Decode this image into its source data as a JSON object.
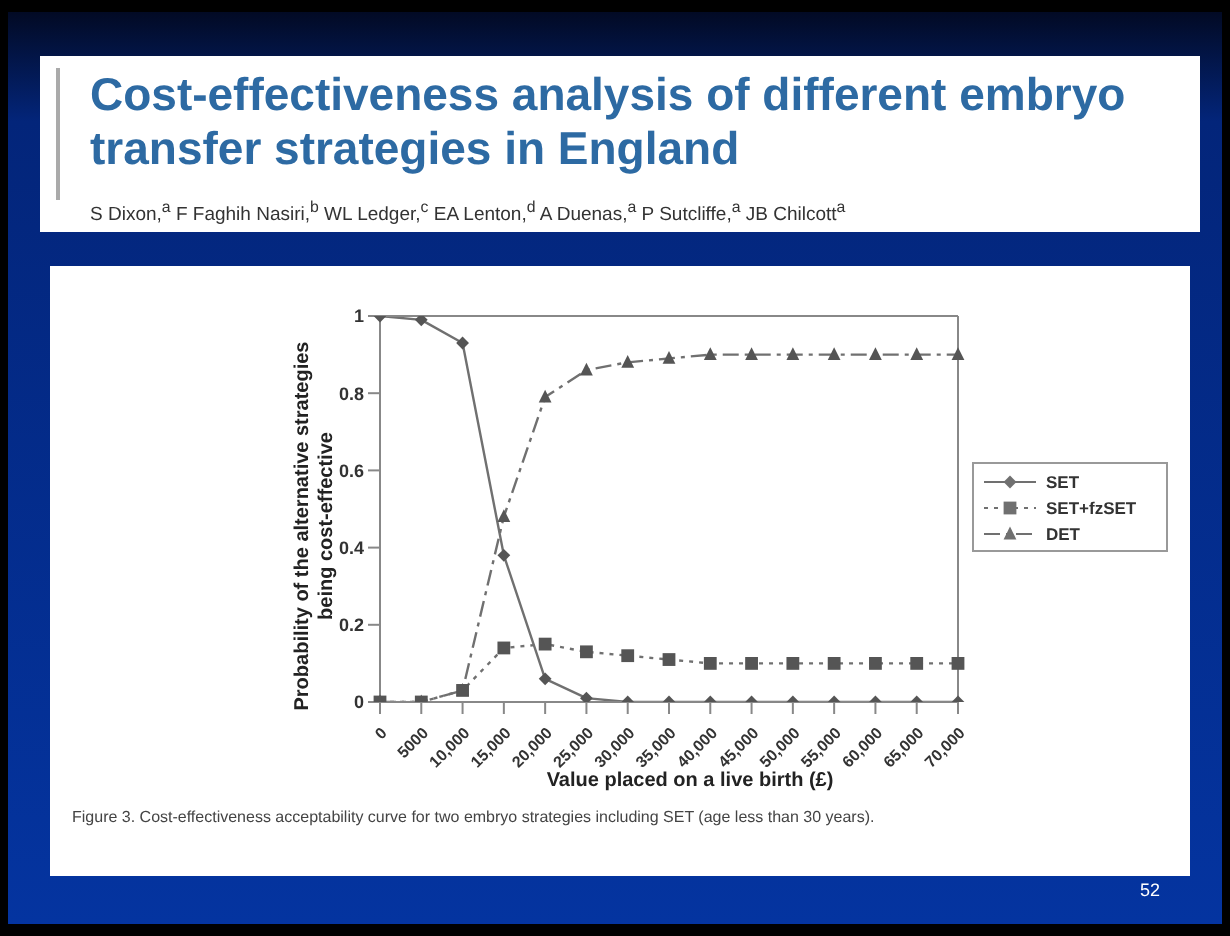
{
  "chart_data": {
    "type": "line",
    "title": "Cost-effectiveness analysis of different embryo transfer strategies in England",
    "subtitle": "S Dixon,$^{a}$ F Faghih Nasiri,$^{b}$ WL Ledger,$^{c}$ EA Lenton,$^{d}$ A Duenas,$^{a}$ P Sutcliffe,$^{a}$ JB Chilcott$^{a}$",
    "xlabel": "Value placed on a live birth (£)",
    "ylabel": "Probability of the alternative strategies being cost-effective",
    "categories": [
      "0",
      "5000",
      "10,000",
      "15,000",
      "20,000",
      "25,000",
      "30,000",
      "35,000",
      "40,000",
      "45,000",
      "50,000",
      "55,000",
      "60,000",
      "65,000",
      "70,000"
    ],
    "series": [
      {
        "name": "SET",
        "color": "#707070",
        "marker": "diamond",
        "line_style": "solid",
        "values": [
          1,
          0.99,
          0.93,
          0.38,
          0.06,
          0.01,
          0,
          0,
          0,
          0,
          0,
          0,
          0,
          0,
          0
        ]
      },
      {
        "name": "SET+fzSET",
        "color": "#707070",
        "marker": "square",
        "line_style": "dotted",
        "values": [
          0,
          0,
          0.03,
          0.14,
          0.15,
          0.13,
          0.12,
          0.11,
          0.1,
          0.1,
          0.1,
          0.1,
          0.1,
          0.1,
          0.1
        ]
      },
      {
        "name": "DET",
        "color": "#707070",
        "marker": "triangle",
        "line_style": "dashed",
        "values": [
          0,
          0,
          0.03,
          0.48,
          0.79,
          0.86,
          0.88,
          0.89,
          0.9,
          0.9,
          0.9,
          0.9,
          0.9,
          0.9,
          0.9
        ]
      }
    ],
    "ylim": [
      0,
      1
    ],
    "yticks": [
      0,
      0.2,
      0.4,
      0.6,
      0.8,
      1
    ],
    "legend": "right",
    "annotations": [
      "Figure 3. Cost-effectiveness acceptability curve for two embryo strategies including SET (age less than 30 years).",
      "52"
    ]
  }
}
